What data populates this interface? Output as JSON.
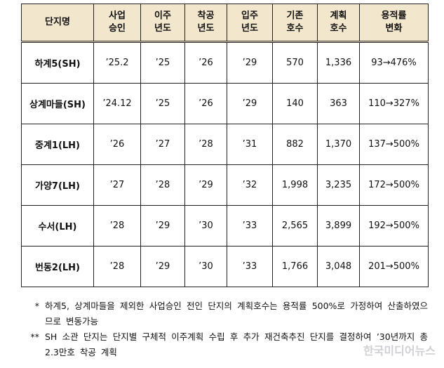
{
  "table": {
    "header": [
      [
        "단지명"
      ],
      [
        "사업",
        "승인"
      ],
      [
        "이주",
        "년도"
      ],
      [
        "착공",
        "년도"
      ],
      [
        "입주",
        "년도"
      ],
      [
        "기존",
        "호수"
      ],
      [
        "계획",
        "호수"
      ],
      [
        "용적률",
        "변화"
      ]
    ],
    "rows": [
      [
        "하계5(SH)",
        "’25.2",
        "’25",
        "’26",
        "’29",
        "570",
        "1,336",
        "93→476%"
      ],
      [
        "상계마들(SH)",
        "’24.12",
        "’25",
        "’26",
        "’29",
        "140",
        "363",
        "110→327%"
      ],
      [
        "중계1(LH)",
        "’26",
        "’27",
        "’28",
        "’31",
        "882",
        "1,370",
        "137→500%"
      ],
      [
        "가양7(LH)",
        "’27",
        "’28",
        "’29",
        "’32",
        "1,998",
        "3,235",
        "172→500%"
      ],
      [
        "수서(LH)",
        "’28",
        "’29",
        "’30",
        "’33",
        "2,565",
        "3,899",
        "192→500%"
      ],
      [
        "번동2(LH)",
        "’28",
        "’29",
        "’30",
        "’33",
        "1,766",
        "3,048",
        "201→500%"
      ]
    ]
  },
  "notes": [
    {
      "marker": "*",
      "text": "하계5, 상계마들을 제외한 사업승인 전인 단지의 계획호수는 용적률 500%로 가정하여 산출하였으므로 변동가능"
    },
    {
      "marker": "**",
      "text": "SH 소관 단지는 단지별 구체적 이주계획 수립 후 추가 재건축추진 단지를 결정하여 ’30년까지 총 2.3만호 착공 계획"
    }
  ],
  "watermark": "한국미디어뉴스"
}
